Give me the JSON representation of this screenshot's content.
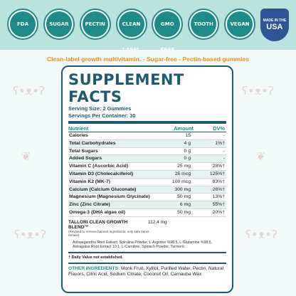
{
  "badges": [
    {
      "name": "fda-badge",
      "label": "FDA"
    },
    {
      "name": "sugar-free-badge",
      "label": "SUGAR"
    },
    {
      "name": "pectin-badge",
      "label": "PECTIN"
    },
    {
      "name": "clean-label-badge",
      "label": "CLEAN LABEL"
    },
    {
      "name": "gmo-free-badge",
      "label": "GMO FREE"
    },
    {
      "name": "tooth-friendly-badge",
      "label": "TOOTH"
    },
    {
      "name": "vegan-badge",
      "label": "VEGAN"
    },
    {
      "name": "made-in-usa-badge",
      "top": "MADE IN THE",
      "main": "USA"
    }
  ],
  "tagline": "Clean-label growth multivitamin. - Sugar-free - Pectin-based gummies",
  "facts": {
    "title": "SUPPLEMENT FACTS",
    "serving_size": "Serving Size: 2 Gummies",
    "servings_per": "Servings Per Container: 30",
    "headers": {
      "nutrient": "Nutrient",
      "amount": "Amount",
      "dv": "DV%"
    },
    "rows": [
      {
        "n": "Calories",
        "a": "15",
        "d": "-"
      },
      {
        "n": "Total Carbohydrates",
        "a": "4 g",
        "d": "1%†"
      },
      {
        "n": "Total Sugars",
        "a": "0 g",
        "d": "-"
      },
      {
        "n": "Added Sugars",
        "a": "0 g",
        "d": "-"
      },
      {
        "n": "Vitamin C (Ascorbic Acid)",
        "a": "25 mg",
        "d": "28%†"
      },
      {
        "n": "Vitamin D3 (Cholecalciferol)",
        "a": "25 mcg",
        "d": "125%†"
      },
      {
        "n": "Vitamin K2 (MK-7)",
        "a": "100 mcg",
        "d": "83%†"
      },
      {
        "n": "Calcium (Calcium Gluconate)",
        "a": "300 mg",
        "d": "26%†"
      },
      {
        "n": "Magnesium (Magnesium Glycinate)",
        "a": "50 mg",
        "d": "13%†"
      },
      {
        "n": "Zinc (Zinc Citrate)",
        "a": "6 mg",
        "d": "55%†"
      },
      {
        "n": "Omega-3 (DHA algae oil)",
        "a": "50 mg",
        "d": "20%†"
      }
    ],
    "blend_name": "TALLORI CLEAN GROWTH BLEND™",
    "blend_amount": "112.4 mg",
    "blend_note": "(Revised to remove banned ingredients; only safe items remain)",
    "blend_list": "Ashwagandha Root Extract, Spirulina Powder, L-Arginine %98.5, L-Glutamine %98.5, Astragalus Root Extract 10:1, L-Carnitine, Spinach Powder, Turmeric",
    "dv_note": "† Daily Value not established.",
    "other_label": "OTHER INGREDIENTS:",
    "other_text": "Monk Fruit, Xylitol, Purified Water, Pectin, Natural Flavors, Citric Acid, Sodium Citrate, Coconut Oil, Carnauba Wax"
  }
}
